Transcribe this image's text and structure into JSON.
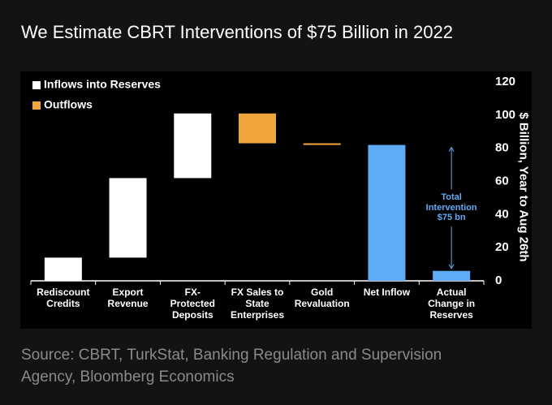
{
  "chart_data": {
    "type": "waterfall",
    "title": "We Estimate CBRT Interventions of $75 Billion in 2022",
    "source": "Source: CBRT, TurkStat, Banking Regulation and Supervision\nAgency, Bloomberg Economics",
    "y_axis_label": "$ Billion, Year to Aug 26th",
    "categories": [
      "Rediscount\nCredits",
      "Export\nRevenue",
      "FX-\nProtected\nDeposits",
      "FX Sales to\nState\nEnterprises",
      "Gold\nRevaluation",
      "Net Inflow",
      "Actual\nChange in\nReserves"
    ],
    "values": [
      14,
      48,
      39,
      -18,
      -1,
      82,
      6
    ],
    "measure": [
      "relative",
      "relative",
      "relative",
      "relative",
      "relative",
      "total",
      "total"
    ],
    "legend": [
      {
        "name": "Inflows into Reserves",
        "color": "#ffffff"
      },
      {
        "name": "Outflows",
        "color": "#f0a63a"
      }
    ],
    "total_color": "#5eacf6",
    "annotation": "Total\nIntervention\n$75 bn",
    "ylim": [
      0,
      120
    ],
    "yticks": [
      0,
      20,
      40,
      60,
      80,
      100,
      120
    ],
    "grid": false
  }
}
